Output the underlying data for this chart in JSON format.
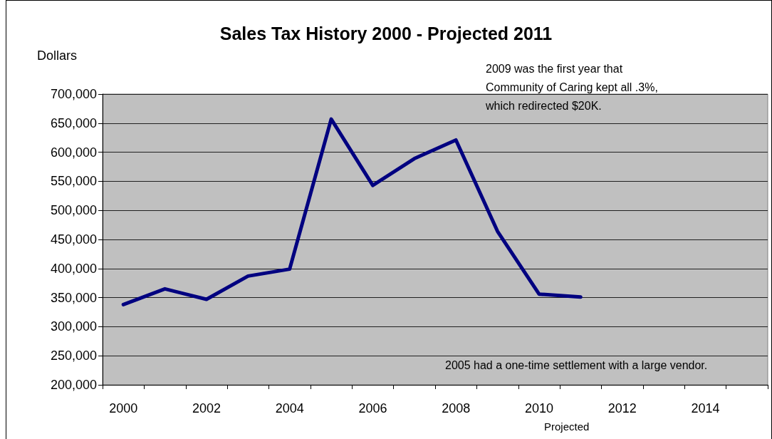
{
  "chart_data": {
    "type": "line",
    "title": "Sales Tax History 2000 - Projected 2011",
    "ylabel": "Dollars",
    "categories": [
      "2000",
      null,
      "2002",
      null,
      "2004",
      null,
      "2006",
      null,
      "2008",
      null,
      "2010",
      null,
      "2012",
      null,
      "2014",
      null
    ],
    "series": [
      {
        "color": "#000080",
        "values": [
          338000,
          365000,
          347000,
          387000,
          399000,
          657000,
          543000,
          589000,
          621000,
          464000,
          356000,
          351000,
          null,
          null,
          null,
          null
        ]
      }
    ],
    "ylim": [
      200000,
      700000
    ],
    "yticks": [
      {
        "value": 200000,
        "label": "200,000"
      },
      {
        "value": 250000,
        "label": "250,000"
      },
      {
        "value": 300000,
        "label": "300,000"
      },
      {
        "value": 350000,
        "label": "350,000"
      },
      {
        "value": 400000,
        "label": "400,000"
      },
      {
        "value": 450000,
        "label": "450,000"
      },
      {
        "value": 500000,
        "label": "500,000"
      },
      {
        "value": 550000,
        "label": "550,000"
      },
      {
        "value": 600000,
        "label": "600,000"
      },
      {
        "value": 650000,
        "label": "650,000"
      },
      {
        "value": 700000,
        "label": "700,000"
      }
    ],
    "grid": "y",
    "marker": "none",
    "line_style": "solid",
    "annotations": [
      "2009 was the first year that\nCommunity of Caring kept all .3%,\nwhich redirected $20K.",
      "2005 had a one-time settlement with a large vendor.",
      "Projected"
    ]
  }
}
